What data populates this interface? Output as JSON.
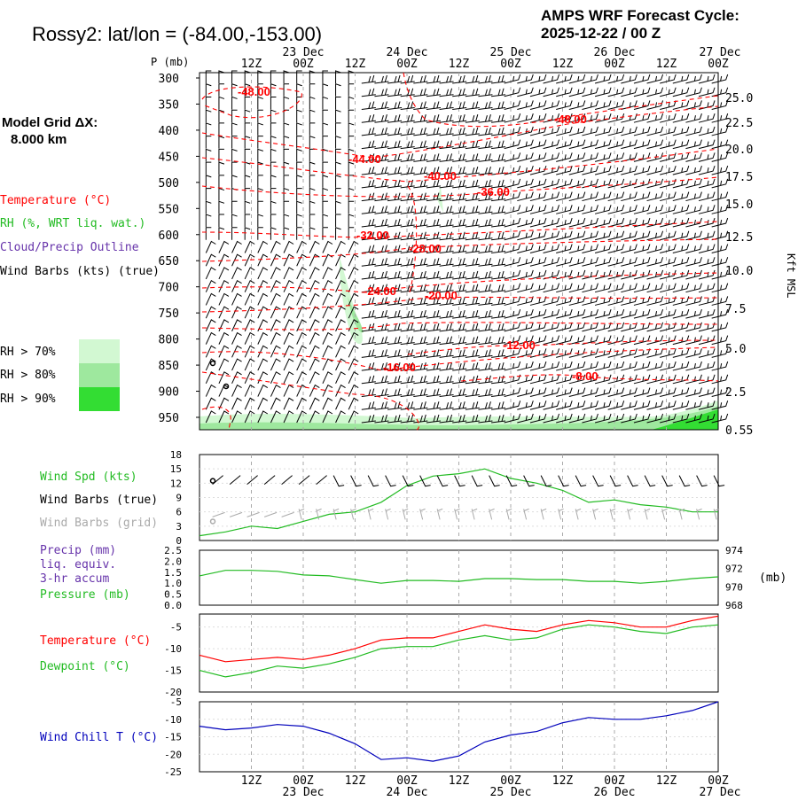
{
  "header": {
    "title": "Rossy2:  lat/lon = (-84.00,-153.00)",
    "cycle_line1": "AMPS WRF Forecast Cycle:",
    "cycle_line2": "2025-12-22 / 00  Z"
  },
  "grid_info": {
    "line1": "Model Grid ΔX:",
    "line2": "8.000 km"
  },
  "time_axis": {
    "ticks": [
      "12Z",
      "00Z",
      "12Z",
      "00Z",
      "12Z",
      "00Z",
      "12Z",
      "00Z",
      "12Z",
      "00Z"
    ],
    "dates": [
      "23 Dec",
      "24 Dec",
      "25 Dec",
      "26 Dec",
      "27 Dec"
    ]
  },
  "colors": {
    "temperature": "#ff0000",
    "rh": "#22bb22",
    "cloud": "#6633aa",
    "wind_grid": "#aaaaaa",
    "windchill": "#0000bb",
    "rh70": "#d2f8d2",
    "rh80": "#9ee89e",
    "rh90": "#33dd33",
    "gridline": "#aaaaaa"
  },
  "legend": {
    "temperature": "Temperature (°C)",
    "rh": "RH (%, WRT liq. wat.)",
    "cloud": "Cloud/Precip Outline",
    "wind": "Wind Barbs (kts) (true)",
    "rh70": "RH > 70%",
    "rh80": "RH > 80%",
    "rh90": "RH > 90%"
  },
  "chart_data": [
    {
      "type": "time-height cross section",
      "ylabel": "P (mb)",
      "y_ticks": [
        "300",
        "350",
        "400",
        "450",
        "500",
        "550",
        "600",
        "650",
        "700",
        "750",
        "800",
        "850",
        "900",
        "950"
      ],
      "right_ylabel": "Kft MSL",
      "right_ticks": [
        "25.0",
        "22.5",
        "20.0",
        "17.5",
        "15.0",
        "12.5",
        "10.0",
        "7.5",
        "5.0",
        "2.5",
        "0.55"
      ],
      "isotherms": [
        {
          "label": "-48.00",
          "value": -48
        },
        {
          "label": "-44.00",
          "value": -44
        },
        {
          "label": "-40.00",
          "value": -40
        },
        {
          "label": "-36.00",
          "value": -36
        },
        {
          "label": "-32.00",
          "value": -32
        },
        {
          "label": "-28.00",
          "value": -28
        },
        {
          "label": "-24.00",
          "value": -24
        },
        {
          "label": "-20.00",
          "value": -20
        },
        {
          "label": "-16.00",
          "value": -16
        },
        {
          "label": "-12.00",
          "value": -12
        },
        {
          "label": "-8.00",
          "value": -8
        }
      ]
    },
    {
      "type": "line",
      "title": "Wind Spd (kts)",
      "label_barbs_true": "Wind Barbs (true)",
      "label_barbs_grid": "Wind Barbs (grid)",
      "ylim": [
        0,
        18
      ],
      "y_ticks": [
        "0",
        "3",
        "6",
        "9",
        "12",
        "15",
        "18"
      ],
      "x_hours": [
        0,
        6,
        12,
        18,
        24,
        30,
        36,
        42,
        48,
        54,
        60,
        66,
        72,
        78,
        84,
        90,
        96,
        102,
        108,
        114,
        120
      ],
      "values": [
        1,
        1.8,
        3,
        2.5,
        4,
        5.5,
        6,
        8,
        11.5,
        13.5,
        14,
        15,
        13,
        12,
        10.5,
        8,
        8.5,
        7.5,
        7,
        6,
        6
      ]
    },
    {
      "type": "line",
      "title_lines": [
        "Precip (mm)",
        "liq. equiv.",
        "3-hr accum",
        "Pressure (mb)"
      ],
      "left_ylim": [
        0,
        2.5
      ],
      "left_ticks": [
        "0.0",
        "0.5",
        "1.0",
        "1.5",
        "2.0",
        "2.5"
      ],
      "right_ylim": [
        968,
        974
      ],
      "right_ticks": [
        "968",
        "970",
        "972",
        "974"
      ],
      "right_unit": "(mb)",
      "x_hours": [
        0,
        6,
        12,
        18,
        24,
        30,
        36,
        42,
        48,
        54,
        60,
        66,
        72,
        78,
        84,
        90,
        96,
        102,
        108,
        114,
        120
      ],
      "pressure": [
        971.2,
        971.8,
        971.8,
        971.7,
        971.3,
        971.2,
        970.8,
        970.4,
        970.7,
        970.7,
        970.6,
        970.9,
        970.9,
        970.8,
        970.8,
        970.6,
        970.6,
        970.4,
        970.6,
        970.9,
        971.1
      ],
      "precip": []
    },
    {
      "type": "line",
      "title": "Temperature (°C)",
      "title2": "Dewpoint (°C)",
      "ylim": [
        -20,
        -2
      ],
      "y_ticks": [
        "-5",
        "-10",
        "-15",
        "-20"
      ],
      "x_hours": [
        0,
        6,
        12,
        18,
        24,
        30,
        36,
        42,
        48,
        54,
        60,
        66,
        72,
        78,
        84,
        90,
        96,
        102,
        108,
        114,
        120
      ],
      "temperature": [
        -11.5,
        -13,
        -12.5,
        -12,
        -12.5,
        -11.5,
        -10,
        -8,
        -7.5,
        -7.5,
        -6,
        -4.5,
        -5.5,
        -6,
        -4.5,
        -3.5,
        -4,
        -5,
        -5,
        -3.5,
        -2.5
      ],
      "dewpoint": [
        -15,
        -16.5,
        -15.5,
        -14,
        -14.5,
        -13.5,
        -12,
        -10,
        -9.5,
        -9.5,
        -8,
        -7,
        -8,
        -7.5,
        -5.5,
        -4.5,
        -5,
        -6,
        -6.5,
        -5,
        -4.5
      ]
    },
    {
      "type": "line",
      "title": "Wind Chill T (°C)",
      "ylim": [
        -25,
        -5
      ],
      "y_ticks": [
        "-5",
        "-10",
        "-15",
        "-20",
        "-25"
      ],
      "x_hours": [
        0,
        6,
        12,
        18,
        24,
        30,
        36,
        42,
        48,
        54,
        60,
        66,
        72,
        78,
        84,
        90,
        96,
        102,
        108,
        114,
        120
      ],
      "values": [
        -12,
        -13,
        -12.5,
        -11.5,
        -12,
        -14,
        -17,
        -21.5,
        -21,
        -22,
        -20.5,
        -16.5,
        -14.5,
        -13.5,
        -11,
        -9.5,
        -10,
        -10,
        -9,
        -7.5,
        -5
      ]
    }
  ]
}
